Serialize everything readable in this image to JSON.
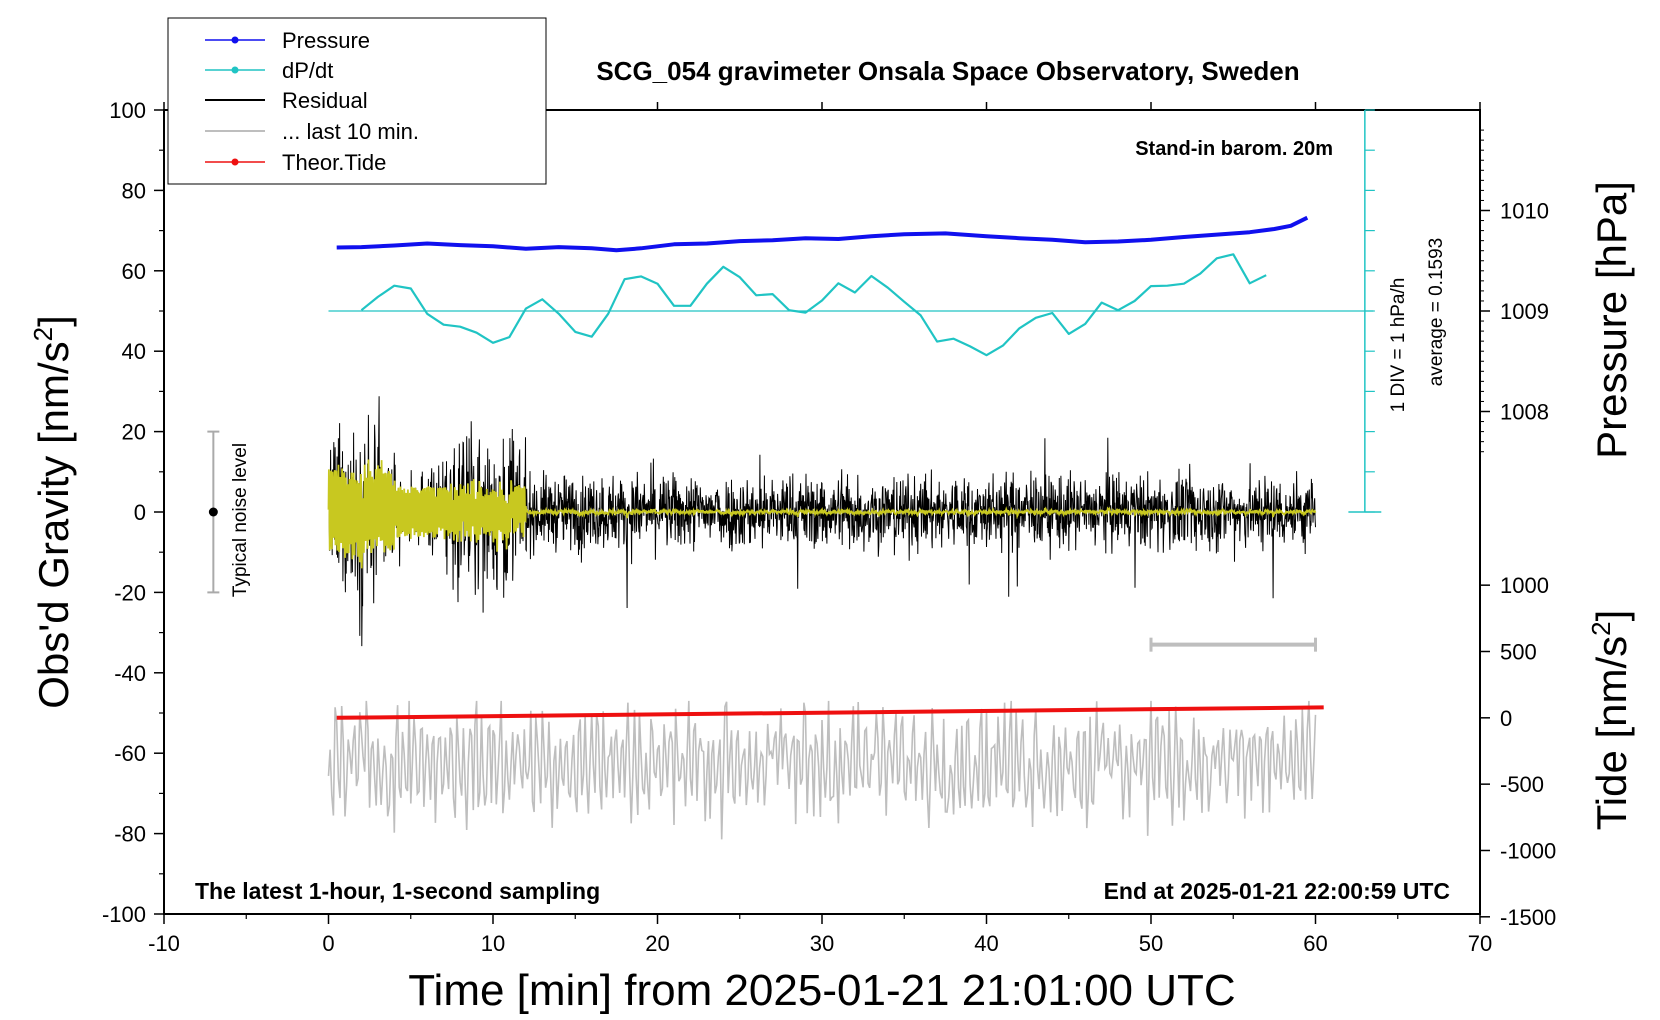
{
  "chart_data": {
    "type": "line",
    "title": "SCG_054 gravimeter Onsala Space Observatory, Sweden",
    "xlabel": "Time [min] from 2025-01-21 21:01:00 UTC",
    "ylabel_main": "Obs'd Gravity [nm/s",
    "ylabel_exp": "2",
    "ylabel_main_close": "]",
    "ylabel_pressure": "Pressure [hPa]",
    "ylabel_tide": "Tide [nm/s",
    "ylabel_tide_exp": "2",
    "ylabel_tide_close": "]",
    "xlim": [
      -10,
      70
    ],
    "ylim": [
      -100,
      100
    ],
    "x_ticks": [
      "-10",
      "0",
      "10",
      "20",
      "30",
      "40",
      "50",
      "60",
      "70"
    ],
    "y_ticks": [
      "100",
      "80",
      "60",
      "40",
      "20",
      "0",
      "-20",
      "-40",
      "-60",
      "-80",
      "-100"
    ],
    "pressure_ticks": [
      "1010",
      "1009",
      "1008"
    ],
    "pressure_tick_values": [
      1010,
      1009,
      1008
    ],
    "tide_ticks": [
      "1000",
      "500",
      "0",
      "-500",
      "-1000",
      "-1500"
    ],
    "tide_tick_values": [
      1000,
      500,
      0,
      -500,
      -1000,
      -1500
    ],
    "legend": [
      "Pressure",
      "dP/dt",
      "Residual",
      "... last 10 min.",
      "Theor.Tide"
    ],
    "legend_location": "top-left",
    "annotations": {
      "barometer": "Stand-in barom. 20m",
      "dpdt_scale": "1 DIV = 1 hPa/h",
      "dpdt_average": "average = 0.1593",
      "noise": "Typical noise level",
      "bottom_left": "The latest 1-hour, 1-second sampling",
      "bottom_right": "End at 2025-01-21 22:00:59 UTC"
    },
    "noise_bar": {
      "x": -7,
      "center": 0,
      "half_range": 20
    },
    "last10_bar": {
      "x_start": 50,
      "x_end": 60
    },
    "dpdt_baseline": 50,
    "colors": {
      "pressure": "#1010ee",
      "dpdt": "#20c4c4",
      "residual": "#000000",
      "smoothed": "#c8c820",
      "last10": "#bebebe",
      "tide": "#ee1010"
    },
    "series": [
      {
        "name": "Pressure",
        "x": [
          0.5,
          2,
          4,
          6,
          8,
          10,
          12,
          14,
          16,
          17.5,
          19,
          21,
          23,
          25,
          27,
          29,
          31,
          33,
          35,
          37.5,
          40,
          42,
          44,
          46,
          48,
          50,
          52,
          54,
          56,
          57.5,
          58.5,
          59.5
        ],
        "y": [
          65.8,
          65.9,
          66.3,
          66.8,
          66.4,
          66.1,
          65.5,
          65.9,
          65.6,
          65.1,
          65.6,
          66.6,
          66.8,
          67.4,
          67.6,
          68.1,
          67.9,
          68.6,
          69.1,
          69.3,
          68.6,
          68.1,
          67.7,
          67.1,
          67.3,
          67.7,
          68.4,
          69.0,
          69.6,
          70.4,
          71.2,
          73.2
        ]
      },
      {
        "name": "dP/dt",
        "x": [
          2,
          3,
          4,
          5,
          6,
          7,
          8,
          9,
          10,
          11,
          12,
          13,
          14,
          15,
          16,
          17,
          18,
          19,
          20,
          21,
          22,
          23,
          24,
          25,
          26,
          27,
          28,
          29,
          30,
          31,
          32,
          33,
          34,
          35,
          36,
          37,
          38,
          39,
          40,
          41,
          42,
          43,
          44,
          45,
          46,
          47,
          48,
          49,
          50,
          51,
          52,
          53,
          54,
          55,
          56,
          57
        ],
        "y": [
          50.2,
          53.5,
          56.3,
          55.6,
          49.3,
          46.6,
          46.1,
          44.6,
          42.1,
          43.5,
          50.6,
          52.9,
          49.3,
          44.8,
          43.6,
          49.3,
          57.9,
          58.6,
          56.8,
          51.3,
          51.3,
          56.8,
          61.0,
          58.4,
          53.9,
          54.2,
          50.2,
          49.6,
          52.6,
          56.9,
          54.6,
          58.7,
          55.8,
          52.3,
          48.9,
          42.4,
          43.1,
          41.2,
          39.0,
          41.4,
          45.7,
          48.3,
          49.5,
          44.3,
          46.8,
          52.1,
          50.2,
          52.5,
          56.2,
          56.3,
          56.8,
          59.3,
          63.1,
          64.1,
          56.9,
          58.9
        ]
      },
      {
        "name": "Residual",
        "x_range": [
          0,
          60
        ],
        "description": "1-second residual gravity, amplitude largest near 0-12 min"
      },
      {
        "name": "... last 10 min.",
        "x_range": [
          0,
          60
        ],
        "baseline": -62
      },
      {
        "name": "Theor.Tide",
        "x": [
          0.5,
          60.5
        ],
        "y": [
          -51.2,
          -48.6
        ]
      }
    ]
  }
}
